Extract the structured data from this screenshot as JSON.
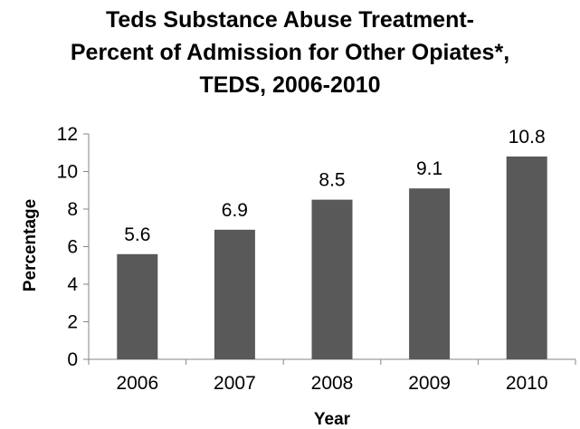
{
  "chart_data": {
    "type": "bar",
    "title_lines": [
      "Teds Substance Abuse Treatment-",
      "Percent of Admission for Other Opiates*,",
      "TEDS, 2006-2010"
    ],
    "categories": [
      "2006",
      "2007",
      "2008",
      "2009",
      "2010"
    ],
    "values": [
      5.6,
      6.9,
      8.5,
      9.1,
      10.8
    ],
    "data_labels": [
      "5.6",
      "6.9",
      "8.5",
      "9.1",
      "10.8"
    ],
    "xlabel": "Year",
    "ylabel": "Percentage",
    "ylim": [
      0,
      12
    ],
    "yticks": [
      "0",
      "2",
      "4",
      "6",
      "8",
      "10",
      "12"
    ],
    "grid": false,
    "legend": "none",
    "bar_color": "#595959",
    "axis_color": "#868686"
  }
}
